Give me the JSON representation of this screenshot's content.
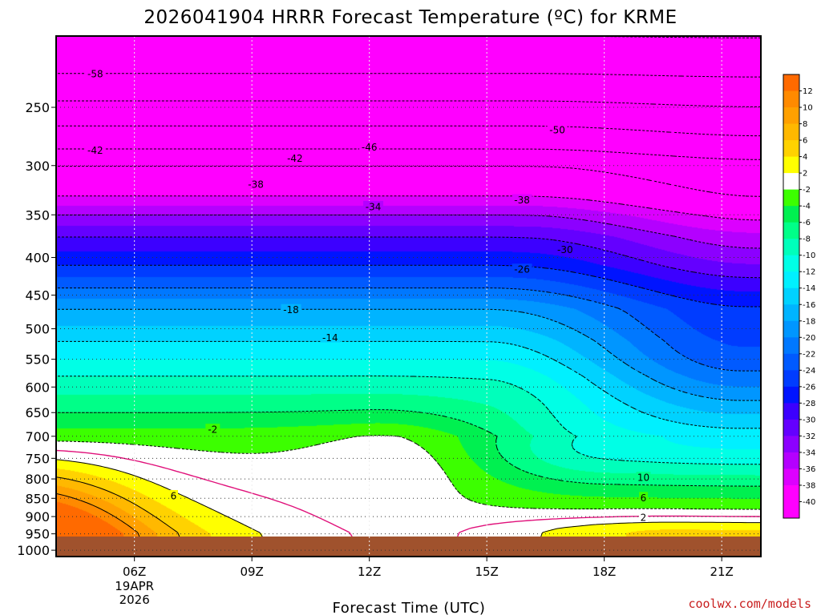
{
  "chart_data": {
    "type": "contour",
    "title": "2026041904 HRRR Forecast Temperature (ºC) for KRME",
    "xlabel": "Forecast Time (UTC)",
    "credit": "coolwx.com/models",
    "x_range": [
      4.0,
      22.0
    ],
    "x_ticks": [
      {
        "value": 6,
        "label": "06Z",
        "sub": [
          "19APR",
          "2026"
        ]
      },
      {
        "value": 9,
        "label": "09Z",
        "sub": []
      },
      {
        "value": 12,
        "label": "12Z",
        "sub": []
      },
      {
        "value": 15,
        "label": "15Z",
        "sub": []
      },
      {
        "value": 18,
        "label": "18Z",
        "sub": []
      },
      {
        "value": 21,
        "label": "21Z",
        "sub": []
      }
    ],
    "y_scale": "log-pressure",
    "y_range": [
      200,
      1020
    ],
    "y_ticks": [
      250,
      300,
      350,
      400,
      450,
      500,
      550,
      600,
      650,
      700,
      750,
      800,
      850,
      900,
      950,
      1000
    ],
    "surface_pressure": 958,
    "contour_levels": [
      12,
      10,
      8,
      6,
      4,
      2,
      -2,
      -4,
      -6,
      -8,
      -10,
      -12,
      -14,
      -16,
      -18,
      -20,
      -22,
      -24,
      -26,
      -28,
      -30,
      -32,
      -34,
      -36,
      -38,
      -40
    ],
    "colorbar": [
      {
        "label": "12",
        "color": "#ff6a00"
      },
      {
        "label": "10",
        "color": "#ff8a00"
      },
      {
        "label": "8",
        "color": "#ffa000"
      },
      {
        "label": "6",
        "color": "#ffb800"
      },
      {
        "label": "4",
        "color": "#ffd200"
      },
      {
        "label": "2",
        "color": "#ffff00"
      },
      {
        "label": "-2",
        "color": "#ffffff"
      },
      {
        "label": "-4",
        "color": "#3cff00"
      },
      {
        "label": "-6",
        "color": "#00f050"
      },
      {
        "label": "-8",
        "color": "#00ff88"
      },
      {
        "label": "-10",
        "color": "#00ffbb"
      },
      {
        "label": "-12",
        "color": "#00ffe6"
      },
      {
        "label": "-14",
        "color": "#00f0ff"
      },
      {
        "label": "-16",
        "color": "#00d2ff"
      },
      {
        "label": "-18",
        "color": "#00b4ff"
      },
      {
        "label": "-20",
        "color": "#0096ff"
      },
      {
        "label": "-22",
        "color": "#0078ff"
      },
      {
        "label": "-24",
        "color": "#005aff"
      },
      {
        "label": "-26",
        "color": "#003cff"
      },
      {
        "label": "-28",
        "color": "#0014ff"
      },
      {
        "label": "-30",
        "color": "#3c00ff"
      },
      {
        "label": "-32",
        "color": "#6400ff"
      },
      {
        "label": "-34",
        "color": "#8c00ff"
      },
      {
        "label": "-36",
        "color": "#b400ff"
      },
      {
        "label": "-38",
        "color": "#dc00ff"
      },
      {
        "label": "-40",
        "color": "#ff00ff"
      },
      {
        "label": "",
        "color": "#ff00ff"
      }
    ],
    "contour_labels": [
      {
        "text": "-58",
        "x": 5.0,
        "p": 225
      },
      {
        "text": "-50",
        "x": 16.8,
        "p": 268
      },
      {
        "text": "-46",
        "x": 12.0,
        "p": 283
      },
      {
        "text": "-42",
        "x": 5.0,
        "p": 286
      },
      {
        "text": "-42",
        "x": 10.1,
        "p": 293
      },
      {
        "text": "-38",
        "x": 9.1,
        "p": 318
      },
      {
        "text": "-38",
        "x": 15.9,
        "p": 334
      },
      {
        "text": "-34",
        "x": 12.1,
        "p": 341
      },
      {
        "text": "-30",
        "x": 17.0,
        "p": 390
      },
      {
        "text": "-26",
        "x": 15.9,
        "p": 415
      },
      {
        "text": "-18",
        "x": 10.0,
        "p": 471
      },
      {
        "text": "-14",
        "x": 11.0,
        "p": 514
      },
      {
        "text": "-2",
        "x": 8.0,
        "p": 685
      },
      {
        "text": "6",
        "x": 7.0,
        "p": 843
      },
      {
        "text": "10",
        "x": 19.0,
        "p": 796
      },
      {
        "text": "6",
        "x": 19.0,
        "p": 848
      },
      {
        "text": "2",
        "x": 19.0,
        "p": 902
      }
    ]
  }
}
